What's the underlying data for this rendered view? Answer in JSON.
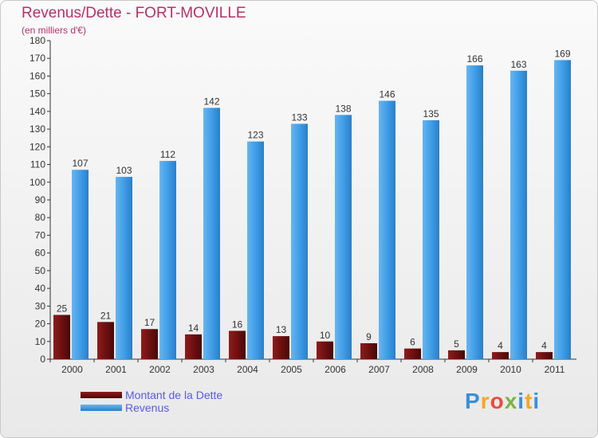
{
  "title": "Revenus/Dette - FORT-MOVILLE",
  "subtitle": "(en milliers d'€)",
  "colors": {
    "dette": "#6b0f0f",
    "revenus": "#3d9be6",
    "title": "#b5316a",
    "legend_text": "#5a5ae6"
  },
  "legend": {
    "dette_label": "Montant de la Dette",
    "revenus_label": "Revenus"
  },
  "logo": {
    "text": "Proxiti"
  },
  "chart_data": {
    "type": "bar",
    "title": "Revenus/Dette - FORT-MOVILLE",
    "subtitle": "(en milliers d'€)",
    "xlabel": "",
    "ylabel": "",
    "ylim": [
      0,
      180
    ],
    "ytick_step": 10,
    "grid": false,
    "legend_position": "bottom-left",
    "categories": [
      "2000",
      "2001",
      "2002",
      "2003",
      "2004",
      "2005",
      "2006",
      "2007",
      "2008",
      "2009",
      "2010",
      "2011"
    ],
    "series": [
      {
        "name": "Montant de la Dette",
        "color": "#6b0f0f",
        "values": [
          25,
          21,
          17,
          14,
          16,
          13,
          10,
          9,
          6,
          5,
          4,
          4
        ]
      },
      {
        "name": "Revenus",
        "color": "#3d9be6",
        "values": [
          107,
          103,
          112,
          142,
          123,
          133,
          138,
          146,
          135,
          166,
          163,
          169
        ]
      }
    ]
  }
}
